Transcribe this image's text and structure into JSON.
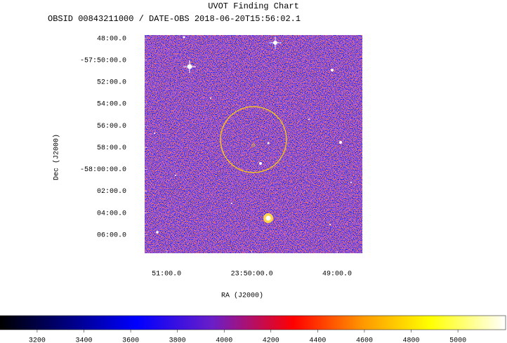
{
  "chart_data": {
    "type": "image",
    "title": "UVOT Finding Chart",
    "subtitle": "OBSID 00843211000 / DATE-OBS 2018-06-20T15:56:02.1",
    "xlabel": "RA (J2000)",
    "ylabel": "Dec (J2000)",
    "xlim": [
      357.814,
      357.176
    ],
    "xticks": [
      {
        "value": 357.75,
        "label": "51:00.0"
      },
      {
        "value": 357.5,
        "label": "23:50:00.0"
      },
      {
        "value": 357.25,
        "label": "49:00.0"
      }
    ],
    "ylim": [
      -58.128,
      -57.795
    ],
    "yticks": [
      {
        "value": -57.8,
        "label": "48:00.0"
      },
      {
        "value": -57.833333,
        "label": "-57:50:00.0"
      },
      {
        "value": -57.866667,
        "label": "52:00.0"
      },
      {
        "value": -57.9,
        "label": "54:00.0"
      },
      {
        "value": -57.933333,
        "label": "56:00.0"
      },
      {
        "value": -57.966667,
        "label": "58:00.0"
      },
      {
        "value": -58.0,
        "label": "-58:00:00.0"
      },
      {
        "value": -58.033333,
        "label": "02:00.0"
      },
      {
        "value": -58.066667,
        "label": "04:00.0"
      },
      {
        "value": -58.1,
        "label": "06:00.0"
      }
    ],
    "clim": [
      3041,
      5204
    ],
    "cticks": [
      3200,
      3400,
      3600,
      3800,
      4000,
      4200,
      4400,
      4600,
      4800,
      5000
    ]
  }
}
